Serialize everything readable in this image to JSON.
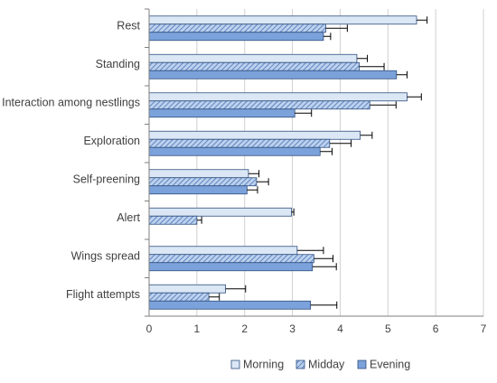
{
  "chart_data": {
    "type": "bar",
    "orientation": "horizontal",
    "categories": [
      "Rest",
      "Standing",
      "Interaction among nestlings",
      "Exploration",
      "Self-preening",
      "Alert",
      "Wings spread",
      "Flight attempts"
    ],
    "series": [
      {
        "name": "Morning",
        "values": [
          5.6,
          4.35,
          5.4,
          4.42,
          2.08,
          2.98,
          3.1,
          1.6
        ],
        "errors": [
          0.22,
          0.22,
          0.3,
          0.25,
          0.22,
          0.05,
          0.55,
          0.42
        ]
      },
      {
        "name": "Midday",
        "values": [
          3.7,
          4.4,
          4.62,
          3.78,
          2.25,
          1.0,
          3.45,
          1.25
        ],
        "errors": [
          0.45,
          0.52,
          0.55,
          0.45,
          0.25,
          0.1,
          0.4,
          0.22
        ]
      },
      {
        "name": "Evening",
        "values": [
          3.65,
          5.18,
          3.05,
          3.58,
          2.05,
          null,
          3.42,
          3.38
        ],
        "errors": [
          0.15,
          0.22,
          0.35,
          0.25,
          0.22,
          null,
          0.5,
          0.55
        ]
      }
    ],
    "xlim": [
      0,
      7
    ],
    "xticks": [
      "0",
      "1",
      "2",
      "3",
      "4",
      "5",
      "6",
      "7"
    ],
    "grid": "vertical",
    "legend": "bottom",
    "colors": {
      "Morning": "#dbe7f5",
      "Midday": "#a9c3e6",
      "Evening": "#7ba2da",
      "outline": "#2f4f7f",
      "grid": "#d0d0d0",
      "axis": "#7f7f7f",
      "errorbar": "#000000"
    },
    "fills": {
      "Morning": "solid",
      "Midday": "diagonal-hatch",
      "Evening": "solid"
    }
  }
}
